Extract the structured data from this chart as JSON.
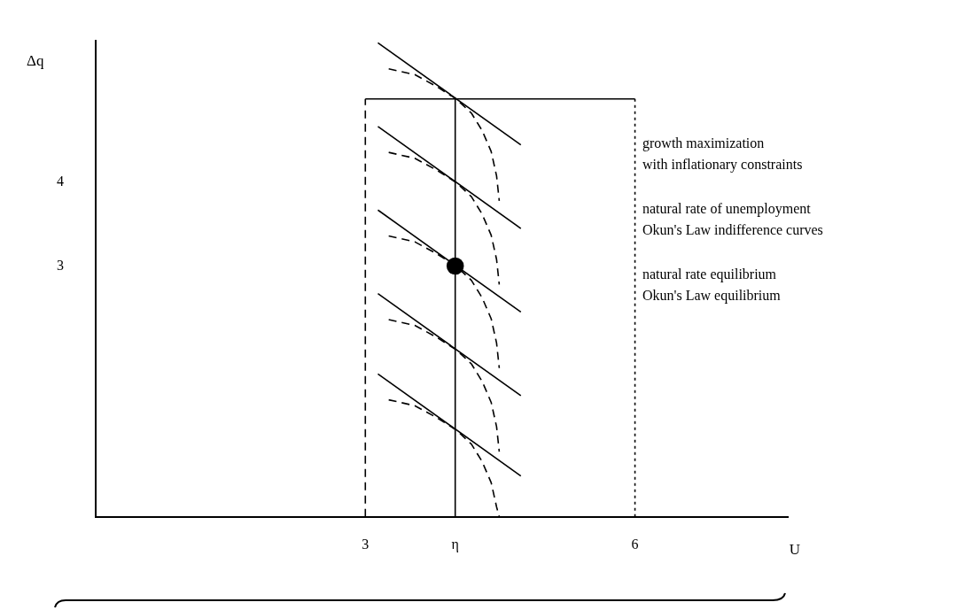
{
  "chart_data": {
    "type": "line",
    "xlabel": "U",
    "ylabel": "Δq",
    "xlim": [
      0,
      7.7
    ],
    "ylim": [
      0,
      5.7
    ],
    "xticks": [
      3,
      {
        "value": 4,
        "label": "η"
      },
      6
    ],
    "yticks": [
      3,
      4
    ],
    "grid": false,
    "legend": false,
    "marker": "none",
    "annotations": [
      "growth maximization\nwith inflationary constraints",
      "natural rate of unemployment\nOkun's Law indifference curves",
      "natural rate equilibrium\nOkun's Law equilibrium"
    ],
    "series": [
      {
        "type": "line",
        "line_style": "dashed",
        "color": "#000000",
        "x": [
          3,
          3
        ],
        "values": [
          0,
          5
        ]
      },
      {
        "type": "line",
        "line_style": "solid",
        "color": "#000000",
        "x": [
          3,
          6
        ],
        "values": [
          5,
          5
        ]
      },
      {
        "type": "line",
        "line_style": "dotted",
        "color": "#000000",
        "x": [
          6,
          6
        ],
        "values": [
          5,
          0
        ]
      },
      {
        "type": "line",
        "line_style": "solid",
        "color": "#000000",
        "x": [
          4,
          4
        ],
        "values": [
          0,
          5
        ]
      },
      {
        "type": "line",
        "line_style": "solid",
        "color": "#000000",
        "x": [
          3.14,
          4.73
        ],
        "values": [
          5.67,
          4.45
        ]
      },
      {
        "type": "line",
        "line_style": "solid",
        "color": "#000000",
        "x": [
          3.14,
          4.73
        ],
        "values": [
          4.67,
          3.45
        ]
      },
      {
        "type": "line",
        "line_style": "solid",
        "color": "#000000",
        "x": [
          3.14,
          4.73
        ],
        "values": [
          3.67,
          2.45
        ]
      },
      {
        "type": "line",
        "line_style": "solid",
        "color": "#000000",
        "x": [
          3.14,
          4.73
        ],
        "values": [
          2.67,
          1.45
        ]
      },
      {
        "type": "line",
        "line_style": "solid",
        "color": "#000000",
        "x": [
          3.14,
          4.73
        ],
        "values": [
          1.71,
          0.49
        ]
      },
      {
        "type": "line",
        "line_style": "dashed",
        "color": "#000000",
        "x": [
          3.26,
          3.55,
          3.79,
          4.01,
          4.18,
          4.3,
          4.4,
          4.46,
          4.49
        ],
        "values": [
          5.36,
          5.29,
          5.15,
          5,
          4.83,
          4.62,
          4.37,
          4.08,
          3.78
        ]
      },
      {
        "type": "line",
        "line_style": "dashed",
        "color": "#000000",
        "x": [
          3.26,
          3.55,
          3.79,
          4.01,
          4.18,
          4.3,
          4.4,
          4.46,
          4.49
        ],
        "values": [
          4.36,
          4.29,
          4.15,
          4,
          3.83,
          3.62,
          3.37,
          3.08,
          2.78
        ]
      },
      {
        "type": "line",
        "line_style": "dashed",
        "color": "#000000",
        "x": [
          3.26,
          3.55,
          3.79,
          4.01,
          4.18,
          4.3,
          4.4,
          4.46,
          4.49
        ],
        "values": [
          3.36,
          3.29,
          3.15,
          3,
          2.83,
          2.62,
          2.37,
          2.08,
          1.78
        ]
      },
      {
        "type": "line",
        "line_style": "dashed",
        "color": "#000000",
        "x": [
          3.26,
          3.55,
          3.79,
          4.01,
          4.18,
          4.3,
          4.4,
          4.46,
          4.49
        ],
        "values": [
          2.36,
          2.29,
          2.15,
          2,
          1.83,
          1.62,
          1.37,
          1.08,
          0.78
        ]
      },
      {
        "type": "line",
        "line_style": "dashed",
        "color": "#000000",
        "x": [
          3.26,
          3.55,
          3.79,
          4.01,
          4.18,
          4.3,
          4.4,
          4.46,
          4.49
        ],
        "values": [
          1.4,
          1.33,
          1.19,
          1.04,
          0.87,
          0.66,
          0.41,
          0.12,
          0
        ]
      },
      {
        "type": "scatter",
        "marker": "circle",
        "color": "#000000",
        "x": [
          4
        ],
        "values": [
          3
        ]
      }
    ]
  }
}
